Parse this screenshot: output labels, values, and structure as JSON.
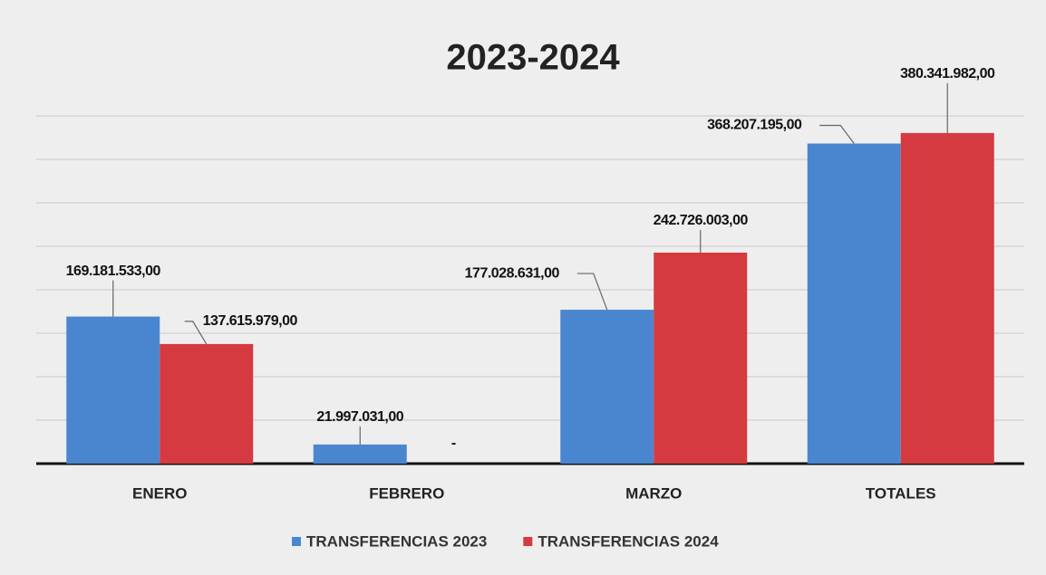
{
  "chart_data": {
    "type": "bar",
    "title": "2023-2024",
    "categories": [
      "ENERO",
      "FEBRERO",
      "MARZO",
      "TOTALES"
    ],
    "series": [
      {
        "name": "TRANSFERENCIAS 2023",
        "color": "#4a86d0",
        "values": [
          169181533,
          21997031,
          177028631,
          368207195
        ],
        "value_labels": [
          "169.181.533,00",
          "21.997.031,00",
          "177.028.631,00",
          "368.207.195,00"
        ]
      },
      {
        "name": "TRANSFERENCIAS 2024",
        "color": "#d43a3f",
        "values": [
          137615979,
          null,
          242726003,
          380341982
        ],
        "value_labels": [
          "137.615.979,00",
          "-",
          "242.726.003,00",
          "380.341.982,00"
        ]
      }
    ],
    "ylim": [
      0,
      400000000
    ],
    "yticks": [
      0,
      50000000,
      100000000,
      150000000,
      200000000,
      250000000,
      300000000,
      350000000,
      400000000
    ],
    "grid": true,
    "legend": "bottom"
  }
}
